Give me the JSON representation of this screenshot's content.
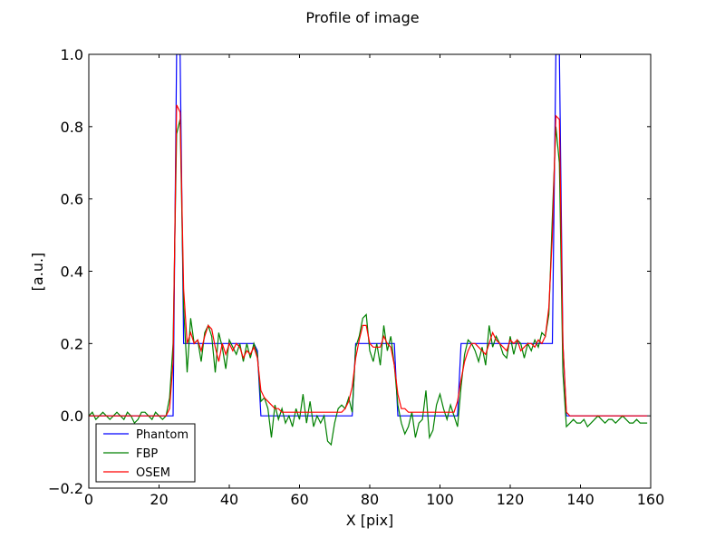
{
  "chart_data": {
    "type": "line",
    "title": "Profile of image",
    "xlabel": "X [pix]",
    "ylabel": "[a.u.]",
    "x": [
      0,
      1,
      2,
      3,
      4,
      5,
      6,
      7,
      8,
      9,
      10,
      11,
      12,
      13,
      14,
      15,
      16,
      17,
      18,
      19,
      20,
      21,
      22,
      23,
      24,
      25,
      26,
      27,
      28,
      29,
      30,
      31,
      32,
      33,
      34,
      35,
      36,
      37,
      38,
      39,
      40,
      41,
      42,
      43,
      44,
      45,
      46,
      47,
      48,
      49,
      50,
      51,
      52,
      53,
      54,
      55,
      56,
      57,
      58,
      59,
      60,
      61,
      62,
      63,
      64,
      65,
      66,
      67,
      68,
      69,
      70,
      71,
      72,
      73,
      74,
      75,
      76,
      77,
      78,
      79,
      80,
      81,
      82,
      83,
      84,
      85,
      86,
      87,
      88,
      89,
      90,
      91,
      92,
      93,
      94,
      95,
      96,
      97,
      98,
      99,
      100,
      101,
      102,
      103,
      104,
      105,
      106,
      107,
      108,
      109,
      110,
      111,
      112,
      113,
      114,
      115,
      116,
      117,
      118,
      119,
      120,
      121,
      122,
      123,
      124,
      125,
      126,
      127,
      128,
      129,
      130,
      131,
      132,
      133,
      134,
      135,
      136,
      137,
      138,
      139,
      140,
      141,
      142,
      143,
      144,
      145,
      146,
      147,
      148,
      149,
      150,
      151,
      152,
      153,
      154,
      155,
      156,
      157,
      158,
      159
    ],
    "series": [
      {
        "name": "Phantom",
        "color": "#0000ff",
        "values": [
          0,
          0,
          0,
          0,
          0,
          0,
          0,
          0,
          0,
          0,
          0,
          0,
          0,
          0,
          0,
          0,
          0,
          0,
          0,
          0,
          0,
          0,
          0,
          0,
          0,
          1,
          1,
          0.2,
          0.2,
          0.2,
          0.2,
          0.2,
          0.2,
          0.2,
          0.2,
          0.2,
          0.2,
          0.2,
          0.2,
          0.2,
          0.2,
          0.2,
          0.2,
          0.2,
          0.2,
          0.2,
          0.2,
          0.2,
          0.18,
          0,
          0,
          0,
          0,
          0,
          0,
          0,
          0,
          0,
          0,
          0,
          0,
          0,
          0,
          0,
          0,
          0,
          0,
          0,
          0,
          0,
          0,
          0,
          0,
          0,
          0,
          0,
          0.2,
          0.2,
          0.2,
          0.2,
          0.2,
          0.2,
          0.2,
          0.2,
          0.2,
          0.2,
          0.2,
          0.2,
          0,
          0,
          0,
          0,
          0,
          0,
          0,
          0,
          0,
          0,
          0,
          0,
          0,
          0,
          0,
          0,
          0,
          0,
          0.2,
          0.2,
          0.2,
          0.2,
          0.2,
          0.2,
          0.2,
          0.2,
          0.2,
          0.2,
          0.2,
          0.2,
          0.2,
          0.2,
          0.2,
          0.2,
          0.2,
          0.2,
          0.2,
          0.2,
          0.2,
          0.2,
          0.2,
          0.2,
          0.2,
          0.2,
          0.2,
          1,
          1,
          0.2,
          0,
          0,
          0,
          0,
          0,
          0,
          0,
          0,
          0,
          0,
          0,
          0,
          0,
          0,
          0,
          0,
          0,
          0,
          0,
          0,
          0,
          0,
          0,
          0
        ]
      },
      {
        "name": "FBP",
        "color": "#008000",
        "values": [
          0,
          0.01,
          -0.01,
          0,
          0.01,
          0,
          -0.01,
          0,
          0.01,
          0,
          -0.01,
          0.01,
          0,
          -0.02,
          -0.01,
          0.01,
          0.01,
          0,
          -0.01,
          0.01,
          0,
          -0.01,
          0,
          0.05,
          0.2,
          0.78,
          0.82,
          0.3,
          0.12,
          0.27,
          0.2,
          0.21,
          0.15,
          0.23,
          0.25,
          0.22,
          0.12,
          0.23,
          0.19,
          0.13,
          0.21,
          0.19,
          0.17,
          0.2,
          0.15,
          0.2,
          0.16,
          0.2,
          0.17,
          0.04,
          0.05,
          0.02,
          -0.06,
          0.03,
          -0.01,
          0.02,
          -0.02,
          0,
          -0.03,
          0.02,
          -0.01,
          0.06,
          -0.02,
          0.04,
          -0.03,
          0,
          -0.02,
          0,
          -0.07,
          -0.08,
          -0.02,
          0.02,
          0.03,
          0.02,
          0.05,
          0.01,
          0.19,
          0.22,
          0.27,
          0.28,
          0.18,
          0.15,
          0.2,
          0.14,
          0.25,
          0.18,
          0.22,
          0.14,
          0.03,
          -0.02,
          -0.05,
          -0.03,
          0.01,
          -0.06,
          -0.02,
          -0.01,
          0.07,
          -0.06,
          -0.04,
          0.03,
          0.06,
          0.02,
          -0.01,
          0.03,
          0,
          -0.03,
          0.08,
          0.17,
          0.21,
          0.2,
          0.18,
          0.15,
          0.19,
          0.14,
          0.25,
          0.19,
          0.22,
          0.2,
          0.17,
          0.16,
          0.22,
          0.17,
          0.21,
          0.2,
          0.16,
          0.2,
          0.18,
          0.21,
          0.19,
          0.23,
          0.22,
          0.28,
          0.55,
          0.8,
          0.7,
          0.12,
          -0.03,
          -0.02,
          -0.01,
          -0.02,
          -0.02,
          -0.01,
          -0.03,
          -0.02,
          -0.01,
          0,
          -0.01,
          -0.02,
          -0.01,
          -0.01,
          -0.02,
          -0.01,
          0,
          -0.01,
          -0.02,
          -0.02,
          -0.01,
          -0.02,
          -0.02,
          -0.02
        ]
      },
      {
        "name": "OSEM",
        "color": "#ff0000",
        "values": [
          0,
          0,
          0,
          0,
          0,
          0,
          0,
          0,
          0,
          0,
          0,
          0,
          0,
          0,
          0,
          0,
          0,
          0,
          0,
          0,
          0,
          0,
          0,
          0.02,
          0.15,
          0.86,
          0.84,
          0.35,
          0.2,
          0.23,
          0.2,
          0.21,
          0.18,
          0.22,
          0.25,
          0.24,
          0.19,
          0.15,
          0.2,
          0.17,
          0.2,
          0.18,
          0.2,
          0.19,
          0.16,
          0.18,
          0.17,
          0.19,
          0.16,
          0.07,
          0.05,
          0.04,
          0.03,
          0.02,
          0.02,
          0.01,
          0.01,
          0.01,
          0.01,
          0.01,
          0.01,
          0.01,
          0.01,
          0.01,
          0.01,
          0.01,
          0.01,
          0.01,
          0.01,
          0.01,
          0.01,
          0.01,
          0.01,
          0.02,
          0.04,
          0.08,
          0.16,
          0.21,
          0.25,
          0.25,
          0.2,
          0.19,
          0.19,
          0.19,
          0.22,
          0.2,
          0.19,
          0.14,
          0.06,
          0.02,
          0.02,
          0.01,
          0.01,
          0.01,
          0.01,
          0.01,
          0.01,
          0.01,
          0.01,
          0.01,
          0.01,
          0.01,
          0.01,
          0.01,
          0.01,
          0.04,
          0.1,
          0.15,
          0.18,
          0.2,
          0.2,
          0.19,
          0.18,
          0.17,
          0.2,
          0.23,
          0.21,
          0.2,
          0.19,
          0.18,
          0.21,
          0.2,
          0.21,
          0.18,
          0.19,
          0.2,
          0.2,
          0.19,
          0.21,
          0.2,
          0.22,
          0.3,
          0.5,
          0.83,
          0.82,
          0.2,
          0.01,
          0,
          0,
          0,
          0,
          0,
          0,
          0,
          0,
          0,
          0,
          0,
          0,
          0,
          0,
          0,
          0,
          0,
          0,
          0,
          0,
          0,
          0,
          0
        ]
      }
    ],
    "xlim": [
      0,
      160
    ],
    "xticks": [
      0,
      20,
      40,
      60,
      80,
      100,
      120,
      140,
      160
    ],
    "ylim": [
      -0.2,
      1.0
    ],
    "yticks": [
      {
        "value": -0.2,
        "label": "−0.2"
      },
      {
        "value": 0,
        "label": "0.0"
      },
      0.2,
      0.4,
      0.6,
      0.8,
      {
        "value": 1.0,
        "label": "1.0"
      }
    ],
    "grid": false,
    "legend": "lower left"
  }
}
